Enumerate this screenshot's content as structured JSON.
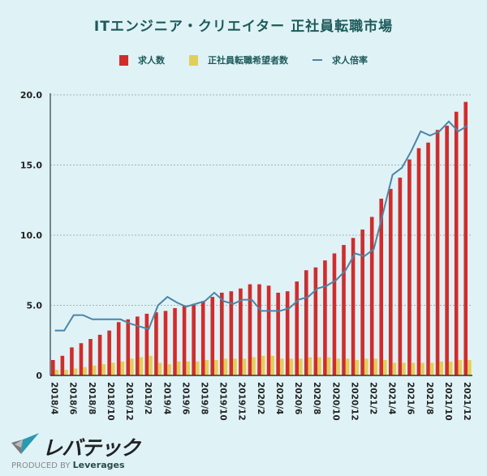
{
  "chart_data": {
    "type": "bar",
    "title": "ITエンジニア・クリエイター 正社員転職市場",
    "xlabel": "",
    "ylabel": "",
    "ylim": [
      0,
      20
    ],
    "yticks": [
      "0",
      "5.0",
      "10.0",
      "15.0",
      "20.0"
    ],
    "ytick_values": [
      0,
      5,
      10,
      15,
      20
    ],
    "grid": true,
    "legend_placement": "top",
    "categories": [
      "2018/4",
      "2018/5",
      "2018/6",
      "2018/7",
      "2018/8",
      "2018/9",
      "2018/10",
      "2018/11",
      "2018/12",
      "2019/1",
      "2019/2",
      "2019/3",
      "2019/4",
      "2019/5",
      "2019/6",
      "2019/7",
      "2019/8",
      "2019/9",
      "2019/10",
      "2019/11",
      "2019/12",
      "2020/1",
      "2020/2",
      "2020/3",
      "2020/4",
      "2020/5",
      "2020/6",
      "2020/7",
      "2020/8",
      "2020/9",
      "2020/10",
      "2020/11",
      "2020/12",
      "2021/1",
      "2021/2",
      "2021/3",
      "2021/4",
      "2021/5",
      "2021/6",
      "2021/7",
      "2021/8",
      "2021/9",
      "2021/10",
      "2021/11",
      "2021/12"
    ],
    "series": [
      {
        "name": "求人数",
        "type": "bar",
        "color": "#d42a2a",
        "values": [
          1.1,
          1.4,
          2.0,
          2.3,
          2.6,
          2.9,
          3.2,
          3.8,
          4.0,
          4.2,
          4.4,
          4.5,
          4.6,
          4.8,
          5.0,
          5.1,
          5.3,
          5.6,
          5.9,
          6.0,
          6.2,
          6.5,
          6.5,
          6.4,
          5.9,
          6.0,
          6.7,
          7.5,
          7.7,
          8.2,
          8.7,
          9.3,
          9.8,
          10.4,
          11.3,
          12.6,
          13.3,
          14.1,
          15.4,
          16.2,
          16.6,
          17.5,
          17.8,
          18.8,
          19.5
        ]
      },
      {
        "name": "正社員転職希望者数",
        "type": "bar",
        "color": "#e2cf5a",
        "values": [
          0.4,
          0.4,
          0.5,
          0.6,
          0.7,
          0.8,
          0.9,
          1.0,
          1.2,
          1.3,
          1.4,
          0.9,
          0.8,
          1.0,
          1.0,
          1.0,
          1.1,
          1.1,
          1.2,
          1.2,
          1.2,
          1.3,
          1.4,
          1.4,
          1.2,
          1.2,
          1.2,
          1.3,
          1.3,
          1.3,
          1.2,
          1.2,
          1.1,
          1.2,
          1.2,
          1.1,
          0.9,
          0.9,
          0.9,
          0.9,
          0.9,
          1.0,
          1.0,
          1.1,
          1.1
        ]
      },
      {
        "name": "求人倍率",
        "type": "line",
        "color": "#4a86a8",
        "values": [
          3.2,
          3.2,
          4.3,
          4.3,
          4.0,
          4.0,
          4.0,
          4.0,
          3.7,
          3.5,
          3.3,
          5.0,
          5.6,
          5.2,
          4.9,
          5.1,
          5.3,
          5.9,
          5.3,
          5.1,
          5.4,
          5.4,
          4.6,
          4.6,
          4.6,
          4.8,
          5.4,
          5.6,
          6.2,
          6.4,
          6.8,
          7.5,
          8.7,
          8.5,
          9.0,
          11.6,
          14.3,
          14.8,
          16.0,
          17.4,
          17.1,
          17.4,
          18.1,
          17.4,
          17.8
        ]
      }
    ]
  },
  "branding": {
    "logo_text": "レバテック",
    "produced_by": "PRODUCED BY",
    "company": "Leverages"
  }
}
